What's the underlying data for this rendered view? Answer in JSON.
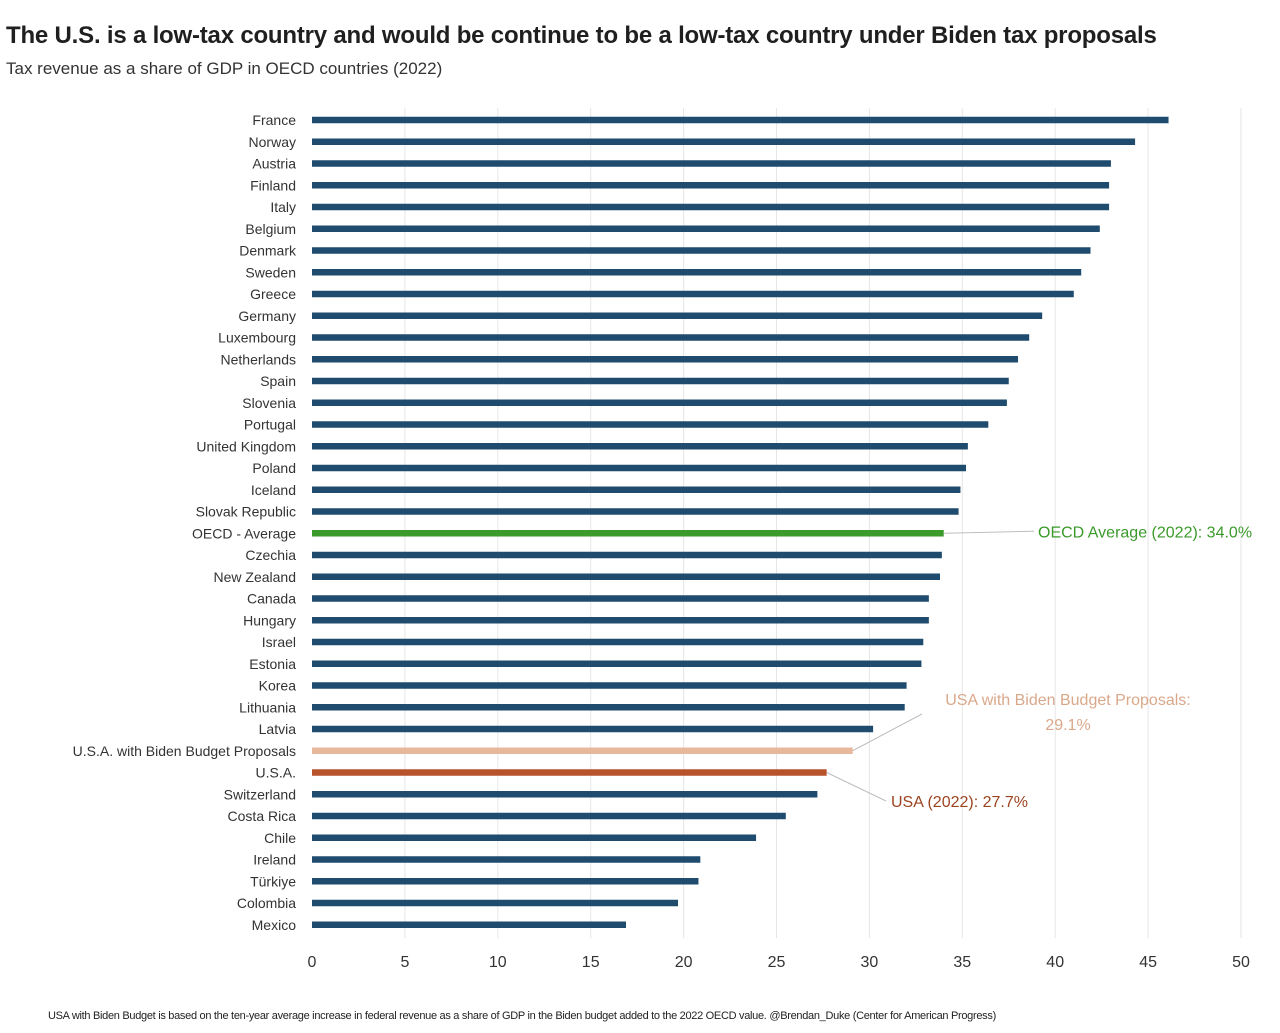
{
  "chart_data": {
    "type": "bar",
    "orientation": "horizontal",
    "title": "The U.S. is a low-tax country and would be continue to be a low-tax country under Biden tax proposals",
    "subtitle": "Tax revenue as a share of GDP in OECD countries (2022)",
    "xlabel": "",
    "ylabel": "",
    "xlim": [
      0,
      50
    ],
    "xticks": [
      0,
      5,
      10,
      15,
      20,
      25,
      30,
      35,
      40,
      45,
      50
    ],
    "grid": true,
    "categories": [
      "France",
      "Norway",
      "Austria",
      "Finland",
      "Italy",
      "Belgium",
      "Denmark",
      "Sweden",
      "Greece",
      "Germany",
      "Luxembourg",
      "Netherlands",
      "Spain",
      "Slovenia",
      "Portugal",
      "United Kingdom",
      "Poland",
      "Iceland",
      "Slovak Republic",
      "OECD - Average",
      "Czechia",
      "New Zealand",
      "Canada",
      "Hungary",
      "Israel",
      "Estonia",
      "Korea",
      "Lithuania",
      "Latvia",
      "U.S.A. with Biden Budget Proposals",
      "U.S.A.",
      "Switzerland",
      "Costa Rica",
      "Chile",
      "Ireland",
      "Türkiye",
      "Colombia",
      "Mexico"
    ],
    "values": [
      46.1,
      44.3,
      43.0,
      42.9,
      42.9,
      42.4,
      41.9,
      41.4,
      41.0,
      39.3,
      38.6,
      38.0,
      37.5,
      37.4,
      36.4,
      35.3,
      35.2,
      34.9,
      34.8,
      34.0,
      33.9,
      33.8,
      33.2,
      33.2,
      32.9,
      32.8,
      32.0,
      31.9,
      30.2,
      29.1,
      27.7,
      27.2,
      25.5,
      23.9,
      20.9,
      20.8,
      19.7,
      16.9
    ],
    "colors": {
      "default": "#1e4b6e",
      "OECD - Average": "#3a9a2a",
      "U.S.A. with Biden Budget Proposals": "#e8b89c",
      "U.S.A.": "#b8522a"
    },
    "annotations": [
      {
        "target": "OECD - Average",
        "lines": [
          "OECD Average (2022): 34.0%"
        ],
        "color": "#3a9a2a"
      },
      {
        "target": "U.S.A. with Biden Budget Proposals",
        "lines": [
          "USA with Biden Budget Proposals:",
          "29.1%"
        ],
        "color": "#d9a88a"
      },
      {
        "target": "U.S.A.",
        "lines": [
          "USA (2022): 27.7%"
        ],
        "color": "#9c4420"
      }
    ],
    "footnote": "USA with Biden Budget is based on the ten-year average increase in federal revenue as a share of GDP in the Biden budget added to the 2022 OECD value. @Brendan_Duke (Center for American Progress)"
  }
}
